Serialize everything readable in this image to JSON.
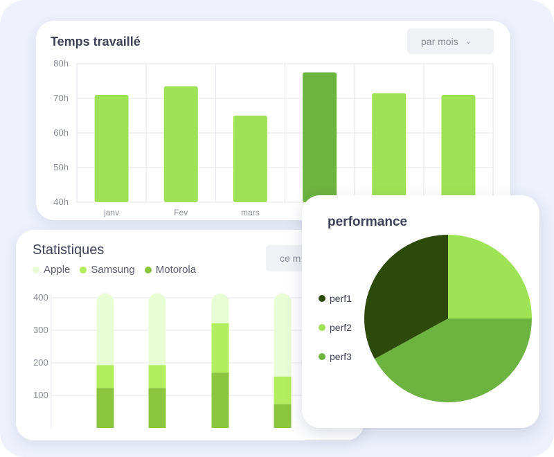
{
  "time_card": {
    "title": "Temps travaillé",
    "dropdown_label": "par mois"
  },
  "stats_card": {
    "title": "Statistiques",
    "dropdown_label": "ce m",
    "legend": [
      "Apple",
      "Samsung",
      "Motorola"
    ]
  },
  "perf_card": {
    "title": "performance",
    "legend": [
      "perf1",
      "perf2",
      "perf3"
    ]
  },
  "chart_data": [
    {
      "type": "bar",
      "title": "Temps travaillé",
      "categories": [
        "janv",
        "Fev",
        "mars",
        "",
        "",
        ""
      ],
      "values": [
        71,
        73.5,
        65,
        77.5,
        71.5,
        71
      ],
      "highlight_index": 3,
      "yticks": [
        "40h",
        "50h",
        "60h",
        "70h",
        "80h"
      ],
      "ylim": [
        40,
        80
      ],
      "grid": true,
      "colors": {
        "bar": "#9ee255",
        "highlight": "#6db33f"
      }
    },
    {
      "type": "bar",
      "stacked": true,
      "title": "Statistiques",
      "categories": [
        "",
        "",
        "",
        ""
      ],
      "series": [
        {
          "name": "Motorola",
          "values": [
            123,
            123,
            170,
            73
          ],
          "color": "#8cc63f"
        },
        {
          "name": "Samsung",
          "values": [
            70,
            70,
            152,
            85
          ],
          "color": "#b2ee5e"
        },
        {
          "name": "Apple",
          "values": [
            220,
            220,
            90,
            255
          ],
          "color": "#e8fcd6"
        }
      ],
      "yticks": [
        "100",
        "200",
        "300",
        "400"
      ],
      "ylim": [
        0,
        413
      ],
      "grid": true
    },
    {
      "type": "pie",
      "title": "performance",
      "labels": [
        "perf1",
        "perf2",
        "perf3"
      ],
      "values": [
        33,
        25,
        42
      ],
      "colors": [
        "#2d4a0a",
        "#9ee255",
        "#6db33f"
      ]
    }
  ]
}
